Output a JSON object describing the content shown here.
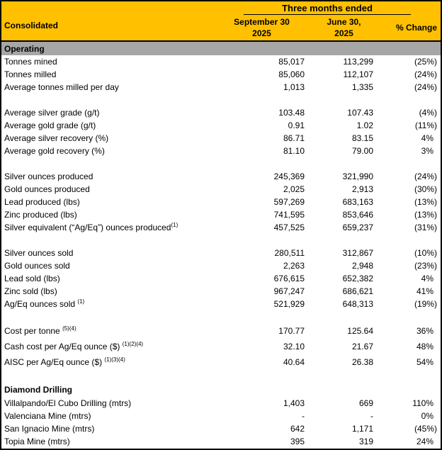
{
  "table": {
    "group_header": "Three months ended",
    "row_label_header": "Consolidated",
    "columns": {
      "period1": {
        "line1": "September 30",
        "line2": "2025"
      },
      "period2": {
        "line1": "June 30,",
        "line2": "2025"
      },
      "change": "% Change"
    },
    "colors": {
      "header_bg": "#FFC000",
      "section_bg": "#A6A6A6",
      "border": "#000000"
    },
    "rows": [
      {
        "t": "section",
        "label": "Operating"
      },
      {
        "t": "data",
        "label": "Tonnes mined",
        "v1": "85,017",
        "v2": "113,299",
        "chg": "(25%)"
      },
      {
        "t": "data",
        "label": "Tonnes milled",
        "v1": "85,060",
        "v2": "112,107",
        "chg": "(24%)"
      },
      {
        "t": "data",
        "label": "Average tonnes milled per day",
        "v1": "1,013",
        "v2": "1,335",
        "chg": "(24%)"
      },
      {
        "t": "blank"
      },
      {
        "t": "data",
        "label": "Average silver grade (g/t)",
        "v1": "103.48",
        "v2": "107.43",
        "chg": "(4%)"
      },
      {
        "t": "data",
        "label": "Average gold grade (g/t)",
        "v1": "0.91",
        "v2": "1.02",
        "chg": "(11%)"
      },
      {
        "t": "data",
        "label": "Average silver recovery (%)",
        "v1": "86.71",
        "v2": "83.15",
        "chg": "4%"
      },
      {
        "t": "data",
        "label": "Average gold recovery (%)",
        "v1": "81.10",
        "v2": "79.00",
        "chg": "3%"
      },
      {
        "t": "blank"
      },
      {
        "t": "data",
        "label": "Silver ounces produced",
        "v1": "245,369",
        "v2": "321,990",
        "chg": "(24%)"
      },
      {
        "t": "data",
        "label": "Gold ounces produced",
        "v1": "2,025",
        "v2": "2,913",
        "chg": "(30%)"
      },
      {
        "t": "data",
        "label": "Lead produced (lbs)",
        "v1": "597,269",
        "v2": "683,163",
        "chg": "(13%)"
      },
      {
        "t": "data",
        "label": "Zinc produced (lbs)",
        "v1": "741,595",
        "v2": "853,646",
        "chg": "(13%)"
      },
      {
        "t": "data",
        "label": "Silver equivalent (“Ag/Eq”) ounces produced",
        "sup": "(1)",
        "v1": "457,525",
        "v2": "659,237",
        "chg": "(31%)"
      },
      {
        "t": "blank"
      },
      {
        "t": "data",
        "label": "Silver ounces sold",
        "v1": "280,511",
        "v2": "312,867",
        "chg": "(10%)"
      },
      {
        "t": "data",
        "label": "Gold ounces sold",
        "v1": "2,263",
        "v2": "2,948",
        "chg": "(23%)"
      },
      {
        "t": "data",
        "label": "Lead sold (lbs)",
        "v1": "676,615",
        "v2": "652,382",
        "chg": "4%"
      },
      {
        "t": "data",
        "label": "Zinc sold (lbs)",
        "v1": "967,247",
        "v2": "686,621",
        "chg": "41%"
      },
      {
        "t": "data",
        "label": "Ag/Eq ounces sold ",
        "sup": "(1)",
        "v1": "521,929",
        "v2": "648,313",
        "chg": "(19%)"
      },
      {
        "t": "blank"
      },
      {
        "t": "data",
        "cls": "cost",
        "label": "Cost per tonne ",
        "sup": "(5)(4)",
        "v1": "170.77",
        "v2": "125.64",
        "chg": "36%"
      },
      {
        "t": "data",
        "cls": "cost",
        "label": "Cash cost per Ag/Eq ounce ($) ",
        "sup": "(1)(2)(4)",
        "v1": "32.10",
        "v2": "21.67",
        "chg": "48%"
      },
      {
        "t": "data",
        "cls": "cost",
        "label": "AISC per Ag/Eq ounce ($) ",
        "sup": "(1)(3)(4)",
        "v1": "40.64",
        "v2": "26.38",
        "chg": "54%"
      },
      {
        "t": "blank"
      },
      {
        "t": "heading",
        "label": "Diamond Drilling"
      },
      {
        "t": "data",
        "label": "Villalpando/El Cubo Drilling (mtrs)",
        "v1": "1,403",
        "v2": "669",
        "chg": "110%"
      },
      {
        "t": "data",
        "label": "Valenciana Mine (mtrs)",
        "v1": "-",
        "v2": "-",
        "chg": "0%"
      },
      {
        "t": "data",
        "label": "San Ignacio Mine (mtrs)",
        "v1": "642",
        "v2": "1,171",
        "chg": "(45%)"
      },
      {
        "t": "data",
        "label": "Topia Mine (mtrs)",
        "v1": "395",
        "v2": "319",
        "chg": "24%"
      }
    ]
  }
}
